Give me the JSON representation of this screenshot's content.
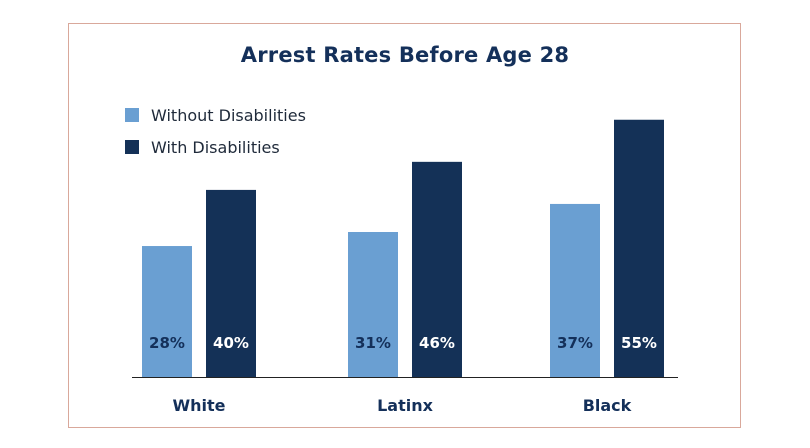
{
  "chart_data": {
    "type": "bar",
    "title": "Arrest Rates Before Age 28",
    "xlabel": "",
    "ylabel": "",
    "categories": [
      "White",
      "Latinx",
      "Black"
    ],
    "series": [
      {
        "name": "Without Disabilities",
        "values": [
          28,
          31,
          37
        ],
        "labels": [
          "28%",
          "31%",
          "37%"
        ],
        "color": "#6a9fd2"
      },
      {
        "name": "With Disabilities",
        "values": [
          40,
          46,
          55
        ],
        "labels": [
          "40%",
          "46%",
          "55%"
        ],
        "color": "#143157"
      }
    ],
    "ylim": [
      0,
      62
    ],
    "grid": false,
    "legend_position": "top-left",
    "colors": {
      "title": "#14305a",
      "axis": "#222222",
      "border": "#d9a89b",
      "label_on_light": "#14305a",
      "label_on_dark": "#ffffff"
    }
  }
}
